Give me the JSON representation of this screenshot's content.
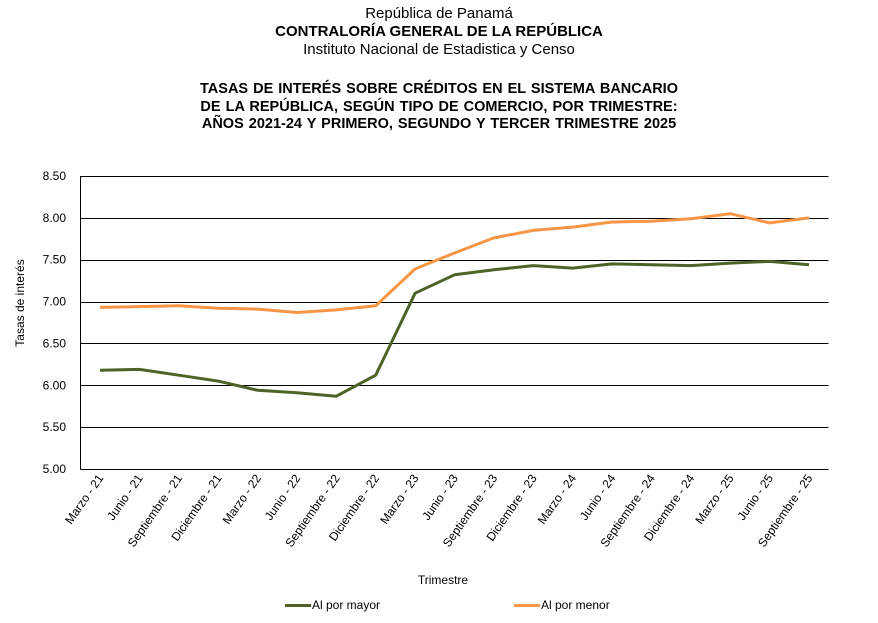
{
  "header": {
    "line1": "República de Panamá",
    "line2": "CONTRALORÍA GENERAL DE LA REPÚBLICA",
    "line3": "Instituto  Nacional de Estadistica y Censo"
  },
  "chart_data": {
    "type": "line",
    "title_lines": [
      "TASAS  DE  INTERÉS  SOBRE  CRÉDITOS EN  EL  SISTEMA BANCARIO",
      "DE LA REPÚBLICA, SEGÚN  TIPO DE COMERCIO,  POR  TRIMESTRE:",
      "AÑOS 2021-24 Y PRIMERO,  SEGUNDO Y  TERCER TRIMESTRE 2025"
    ],
    "xlabel": "Trimestre",
    "ylabel": "Tasas de interés",
    "ylim": [
      5.0,
      8.5
    ],
    "yticks": [
      "5.00",
      "5.50",
      "6.00",
      "6.50",
      "7.00",
      "7.50",
      "8.00",
      "8.50"
    ],
    "ytick_values": [
      5.0,
      5.5,
      6.0,
      6.5,
      7.0,
      7.5,
      8.0,
      8.5
    ],
    "grid": "horizontal",
    "legend_position": "bottom",
    "categories": [
      "Marzo - 21",
      "Junio - 21",
      "Septiembre - 21",
      "Diciembre - 21",
      "Marzo - 22",
      "Junio - 22",
      "Septiembre - 22",
      "Diciembre - 22",
      "Marzo - 23",
      "Junio - 23",
      "Septiembre - 23",
      "Diciembre - 23",
      "Marzo - 24",
      "Junio - 24",
      "Septiembre - 24",
      "Diciembre - 24",
      "Marzo - 25",
      "Junio - 25",
      "Septiembre - 25"
    ],
    "series": [
      {
        "name": "Al por mayor",
        "color": "#4F6228",
        "values": [
          6.18,
          6.19,
          6.12,
          6.05,
          5.94,
          5.91,
          5.87,
          6.12,
          7.1,
          7.32,
          7.38,
          7.43,
          7.4,
          7.45,
          7.44,
          7.43,
          7.46,
          7.48,
          7.44
        ]
      },
      {
        "name": "Al por menor",
        "color": "#F79646",
        "values": [
          6.93,
          6.94,
          6.95,
          6.92,
          6.91,
          6.87,
          6.9,
          6.95,
          7.39,
          7.58,
          7.76,
          7.85,
          7.89,
          7.95,
          7.96,
          7.99,
          8.05,
          7.94,
          8.0
        ]
      }
    ]
  }
}
